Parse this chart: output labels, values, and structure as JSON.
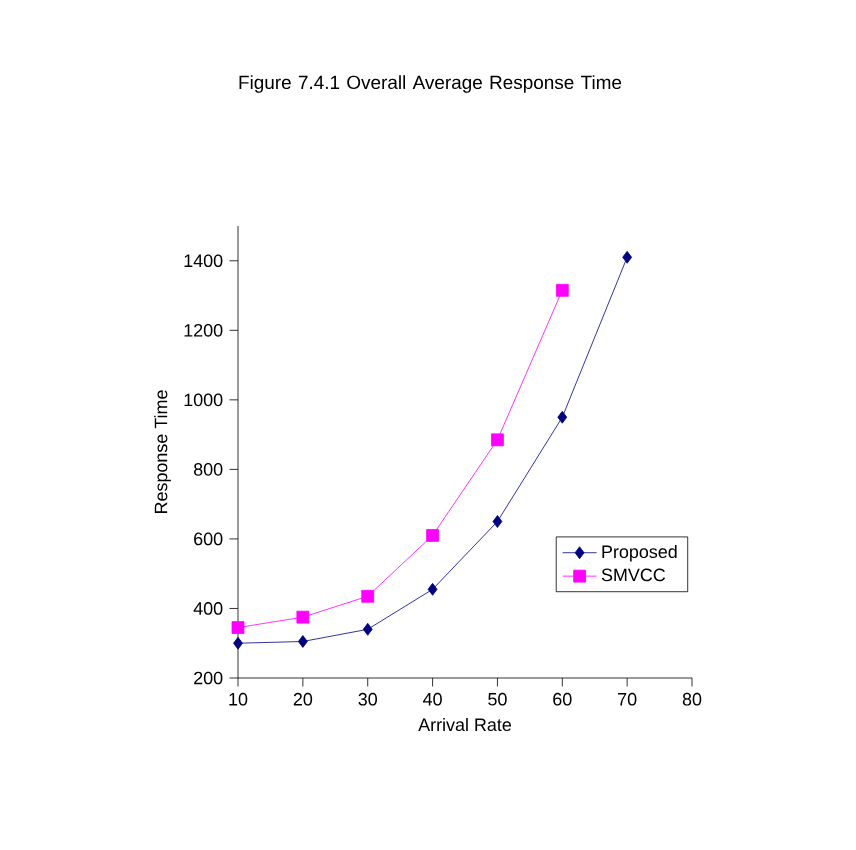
{
  "chart_data": {
    "type": "line",
    "title": "Figure 7.4.1 Overall Average Response Time",
    "xlabel": "Arrival Rate",
    "ylabel": "Response Time",
    "x": [
      10,
      20,
      30,
      40,
      50,
      60,
      70
    ],
    "series": [
      {
        "name": "Proposed",
        "color": "#000080",
        "marker": "diamond",
        "values": [
          300,
          305,
          340,
          455,
          650,
          950,
          1410
        ]
      },
      {
        "name": "SMVCC",
        "color": "#ff00ff",
        "marker": "square",
        "values": [
          345,
          375,
          435,
          610,
          885,
          1315,
          null
        ]
      }
    ],
    "xlim": [
      10,
      80
    ],
    "xticks": [
      10,
      20,
      30,
      40,
      50,
      60,
      70,
      80
    ],
    "ylim": [
      200,
      1500
    ],
    "yticks": [
      200,
      400,
      600,
      800,
      1000,
      1200,
      1400
    ],
    "grid": false,
    "legend": "right",
    "line_style": "solid"
  }
}
